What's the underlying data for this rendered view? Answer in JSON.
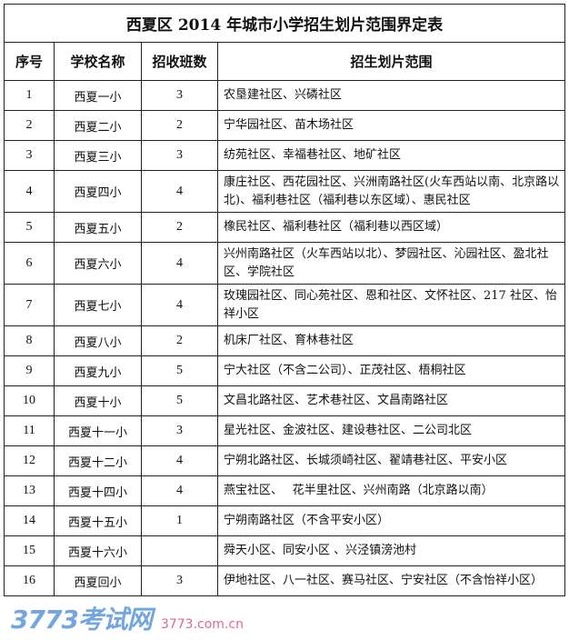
{
  "title": "西夏区 2014 年城市小学招生划片范围界定表",
  "headers": [
    "序号",
    "学校名称",
    "招收班数",
    "招生划片范围"
  ],
  "rows": [
    {
      "no": "1",
      "school": "西夏一小",
      "classes": "3",
      "area": "农垦建社区、兴磷社区"
    },
    {
      "no": "2",
      "school": "西夏二小",
      "classes": "2",
      "area": "宁华园社区、苗木场社区"
    },
    {
      "no": "3",
      "school": "西夏三小",
      "classes": "3",
      "area": "纺苑社区、幸福巷社区、地矿社区"
    },
    {
      "no": "4",
      "school": "西夏四小",
      "classes": "4",
      "area": "康庄社区、西花园社区、兴洲南路社区(火车西站以南、北京路以北)、福利巷社区（福利巷以东区域）、惠民社区"
    },
    {
      "no": "5",
      "school": "西夏五小",
      "classes": "2",
      "area": "橡民社区、福利巷社区（福利巷以西区域）"
    },
    {
      "no": "6",
      "school": "西夏六小",
      "classes": "4",
      "area": "兴州南路社区（火车西站以北）、梦园社区、沁园社区、盈北社区、学院社区"
    },
    {
      "no": "7",
      "school": "西夏七小",
      "classes": "4",
      "area": "玫瑰园社区、同心苑社区、恩和社区、文怀社区、217 社区、怡祥小区"
    },
    {
      "no": "8",
      "school": "西夏八小",
      "classes": "2",
      "area": "机床厂社区、育林巷社区"
    },
    {
      "no": "9",
      "school": "西夏九小",
      "classes": "5",
      "area": "宁大社区（不含二公司）、正茂社区、梧桐社区"
    },
    {
      "no": "10",
      "school": "西夏十小",
      "classes": "5",
      "area": "文昌北路社区、艺术巷社区、文昌南路社区"
    },
    {
      "no": "11",
      "school": "西夏十一小",
      "classes": "3",
      "area": "星光社区、金波社区、建设巷社区、二公司北区"
    },
    {
      "no": "12",
      "school": "西夏十二小",
      "classes": "4",
      "area": "宁朔北路社区、长城须崎社区、翟靖巷社区、平安小区"
    },
    {
      "no": "13",
      "school": "西夏十四小",
      "classes": "4",
      "area": "燕宝社区、　 花半里社区、兴州南路（北京路以南）"
    },
    {
      "no": "14",
      "school": "西夏十五小",
      "classes": "1",
      "area": "宁朔南路社区（不含平安小区）"
    },
    {
      "no": "15",
      "school": "西夏十六小",
      "classes": "",
      "area": "舜天小区、同安小区 、兴泾镇滂池村"
    },
    {
      "no": "16",
      "school": "西夏回小",
      "classes": "3",
      "area": "伊地社区、八一社区、赛马社区、宁安社区（不含怡祥小区）"
    }
  ],
  "watermark": {
    "logo": "3773考试网",
    "url": "3773.com.cn"
  }
}
